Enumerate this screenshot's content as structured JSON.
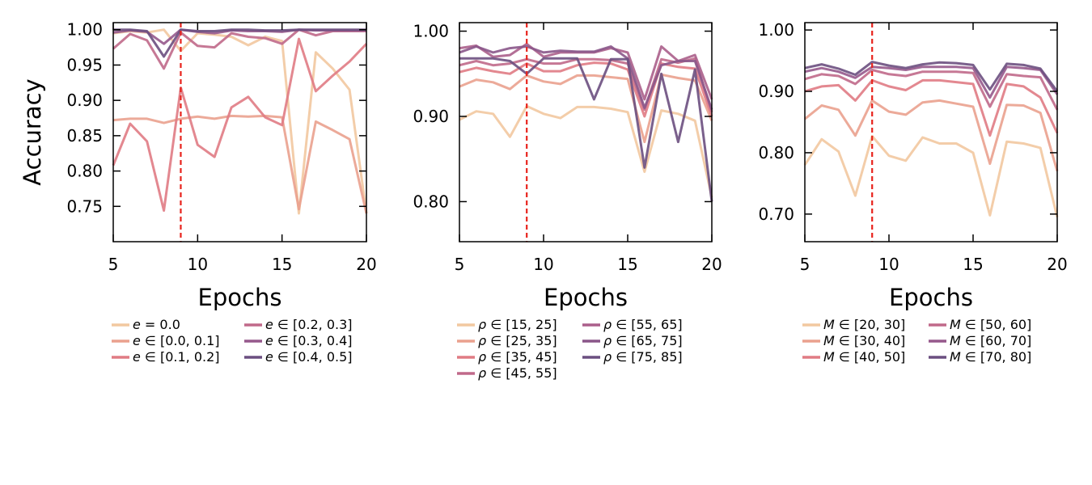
{
  "chart_data": [
    {
      "type": "line",
      "panel": "left",
      "xlabel": "Epochs",
      "ylabel": "Accuracy",
      "xlim": [
        5,
        20
      ],
      "ylim": [
        0.7,
        1.01
      ],
      "xticks": [
        5,
        10,
        15,
        20
      ],
      "xtick_labels": [
        "5",
        "10",
        "15",
        "20"
      ],
      "yticks": [
        0.75,
        0.8,
        0.85,
        0.9,
        0.95,
        1.0
      ],
      "ytick_labels": [
        "0.75",
        "0.80",
        "0.85",
        "0.90",
        "0.95",
        "1.00"
      ],
      "vline_x": 9,
      "x": [
        5,
        6,
        7,
        8,
        9,
        10,
        11,
        12,
        13,
        14,
        15,
        16,
        17,
        18,
        19,
        20
      ],
      "series": [
        {
          "name": "e = 0.0",
          "legend_var": "e",
          "legend_text": " = 0.0",
          "color": "#f2c8a0",
          "values": [
            0.995,
            0.998,
            0.996,
            1.0,
            0.97,
            0.995,
            0.993,
            0.99,
            0.978,
            0.99,
            0.984,
            0.74,
            0.968,
            0.945,
            0.915,
            0.74
          ]
        },
        {
          "name": "e ∈ [0.0, 0.1]",
          "legend_var": "e",
          "legend_text": " ∈ [0.0, 0.1]",
          "color": "#eaa18e",
          "values": [
            0.872,
            0.874,
            0.874,
            0.868,
            0.874,
            0.877,
            0.874,
            0.878,
            0.877,
            0.878,
            0.876,
            0.746,
            0.87,
            0.858,
            0.845,
            0.74
          ]
        },
        {
          "name": "e ∈ [0.1, 0.2]",
          "legend_var": "e",
          "legend_text": " ∈ [0.1, 0.2]",
          "color": "#e07b84",
          "values": [
            0.808,
            0.867,
            0.842,
            0.744,
            0.918,
            0.837,
            0.82,
            0.89,
            0.905,
            0.876,
            0.865,
            0.987,
            0.913,
            0.935,
            0.955,
            0.98
          ]
        },
        {
          "name": "e ∈ [0.2, 0.3]",
          "legend_var": "e",
          "legend_text": " ∈ [0.2, 0.3]",
          "color": "#c0698a",
          "values": [
            0.973,
            0.994,
            0.985,
            0.945,
            0.996,
            0.977,
            0.975,
            0.995,
            0.99,
            0.988,
            0.98,
            1.0,
            0.992,
            0.998,
            0.998,
            0.998
          ]
        },
        {
          "name": "e ∈ [0.3, 0.4]",
          "legend_var": "e",
          "legend_text": " ∈ [0.3, 0.4]",
          "color": "#96598c",
          "values": [
            0.996,
            0.999,
            0.997,
            0.98,
            1.0,
            0.997,
            0.995,
            0.999,
            0.998,
            0.998,
            0.997,
            1.0,
            0.999,
            0.999,
            0.999,
            0.999
          ]
        },
        {
          "name": "e ∈ [0.4, 0.5]",
          "legend_var": "e",
          "legend_text": " ∈ [0.4, 0.5]",
          "color": "#6b4f80",
          "values": [
            1.0,
            1.0,
            0.998,
            0.962,
            1.0,
            0.998,
            0.998,
            1.0,
            1.0,
            0.999,
            0.999,
            1.0,
            1.0,
            1.0,
            1.0,
            1.0
          ]
        }
      ]
    },
    {
      "type": "line",
      "panel": "middle",
      "xlabel": "Epochs",
      "ylabel": "",
      "xlim": [
        5,
        20
      ],
      "ylim": [
        0.753,
        1.01
      ],
      "xticks": [
        5,
        10,
        15,
        20
      ],
      "xtick_labels": [
        "5",
        "10",
        "15",
        "20"
      ],
      "yticks": [
        0.8,
        0.9,
        1.0
      ],
      "ytick_labels": [
        "0.80",
        "0.90",
        "1.00"
      ],
      "vline_x": 9,
      "x": [
        5,
        6,
        7,
        8,
        9,
        10,
        11,
        12,
        13,
        14,
        15,
        16,
        17,
        18,
        19,
        20
      ],
      "series": [
        {
          "name": "ρ ∈ [15, 25]",
          "legend_var": "ρ",
          "legend_text": " ∈ [15, 25]",
          "color": "#f2c8a0",
          "values": [
            0.896,
            0.906,
            0.903,
            0.876,
            0.912,
            0.903,
            0.898,
            0.911,
            0.911,
            0.909,
            0.905,
            0.835,
            0.907,
            0.903,
            0.895,
            0.805
          ]
        },
        {
          "name": "ρ ∈ [25, 35]",
          "legend_var": "ρ",
          "legend_text": " ∈ [25, 35]",
          "color": "#eaa18e",
          "values": [
            0.935,
            0.943,
            0.94,
            0.932,
            0.948,
            0.941,
            0.938,
            0.948,
            0.948,
            0.946,
            0.944,
            0.87,
            0.949,
            0.945,
            0.942,
            0.895
          ]
        },
        {
          "name": "ρ ∈ [35, 45]",
          "legend_var": "ρ",
          "legend_text": " ∈ [35, 45]",
          "color": "#e07b84",
          "values": [
            0.952,
            0.957,
            0.953,
            0.95,
            0.962,
            0.953,
            0.953,
            0.96,
            0.963,
            0.962,
            0.955,
            0.9,
            0.962,
            0.958,
            0.956,
            0.9
          ]
        },
        {
          "name": "ρ ∈ [45, 55]",
          "legend_var": "ρ",
          "legend_text": " ∈ [45, 55]",
          "color": "#c0698a",
          "values": [
            0.96,
            0.965,
            0.96,
            0.962,
            0.967,
            0.962,
            0.962,
            0.967,
            0.967,
            0.966,
            0.962,
            0.908,
            0.967,
            0.963,
            0.968,
            0.905
          ]
        },
        {
          "name": "ρ ∈ [55, 65]",
          "legend_var": "ρ",
          "legend_text": " ∈ [55, 65]",
          "color": "#ab5f8b",
          "values": [
            0.98,
            0.983,
            0.97,
            0.972,
            0.985,
            0.97,
            0.975,
            0.975,
            0.975,
            0.98,
            0.975,
            0.92,
            0.982,
            0.965,
            0.972,
            0.92
          ]
        },
        {
          "name": "ρ ∈ [65, 75]",
          "legend_var": "ρ",
          "legend_text": " ∈ [65, 75]",
          "color": "#8a5689",
          "values": [
            0.975,
            0.982,
            0.975,
            0.98,
            0.982,
            0.975,
            0.977,
            0.976,
            0.976,
            0.982,
            0.968,
            0.91,
            0.96,
            0.965,
            0.965,
            0.908
          ]
        },
        {
          "name": "ρ ∈ [75, 85]",
          "legend_var": "ρ",
          "legend_text": " ∈ [75, 85]",
          "color": "#6b4f80",
          "values": [
            0.968,
            0.968,
            0.968,
            0.965,
            0.95,
            0.968,
            0.968,
            0.968,
            0.92,
            0.967,
            0.967,
            0.84,
            0.95,
            0.87,
            0.955,
            0.8
          ]
        }
      ]
    },
    {
      "type": "line",
      "panel": "right",
      "xlabel": "Epochs",
      "ylabel": "",
      "xlim": [
        5,
        20
      ],
      "ylim": [
        0.655,
        1.012
      ],
      "xticks": [
        5,
        10,
        15,
        20
      ],
      "xtick_labels": [
        "5",
        "10",
        "15",
        "20"
      ],
      "yticks": [
        0.7,
        0.8,
        0.9,
        1.0
      ],
      "ytick_labels": [
        "0.70",
        "0.80",
        "0.90",
        "1.00"
      ],
      "vline_x": 9,
      "x": [
        5,
        6,
        7,
        8,
        9,
        10,
        11,
        12,
        13,
        14,
        15,
        16,
        17,
        18,
        19,
        20
      ],
      "series": [
        {
          "name": "M ∈ [20, 30]",
          "legend_var": "M",
          "legend_text": " ∈ [20, 30]",
          "color": "#f2c8a0",
          "values": [
            0.78,
            0.822,
            0.802,
            0.73,
            0.827,
            0.795,
            0.787,
            0.825,
            0.815,
            0.815,
            0.8,
            0.698,
            0.818,
            0.815,
            0.808,
            0.695
          ]
        },
        {
          "name": "M ∈ [30, 40]",
          "legend_var": "M",
          "legend_text": " ∈ [30, 40]",
          "color": "#eaa18e",
          "values": [
            0.855,
            0.877,
            0.87,
            0.828,
            0.885,
            0.867,
            0.862,
            0.882,
            0.885,
            0.88,
            0.875,
            0.782,
            0.878,
            0.877,
            0.865,
            0.77
          ]
        },
        {
          "name": "M ∈ [40, 50]",
          "legend_var": "M",
          "legend_text": " ∈ [40, 50]",
          "color": "#e07b84",
          "values": [
            0.9,
            0.908,
            0.91,
            0.885,
            0.918,
            0.908,
            0.902,
            0.918,
            0.918,
            0.915,
            0.912,
            0.828,
            0.912,
            0.908,
            0.89,
            0.832
          ]
        },
        {
          "name": "M ∈ [50, 60]",
          "legend_var": "M",
          "legend_text": " ∈ [50, 60]",
          "color": "#c0698a",
          "values": [
            0.92,
            0.928,
            0.925,
            0.912,
            0.935,
            0.928,
            0.925,
            0.932,
            0.932,
            0.932,
            0.93,
            0.875,
            0.928,
            0.925,
            0.923,
            0.87
          ]
        },
        {
          "name": "M ∈ [60, 70]",
          "legend_var": "M",
          "legend_text": " ∈ [60, 70]",
          "color": "#96598c",
          "values": [
            0.932,
            0.938,
            0.932,
            0.922,
            0.94,
            0.938,
            0.935,
            0.94,
            0.94,
            0.94,
            0.938,
            0.89,
            0.94,
            0.938,
            0.935,
            0.895
          ]
        },
        {
          "name": "M ∈ [70, 80]",
          "legend_var": "M",
          "legend_text": " ∈ [70, 80]",
          "color": "#6b4f80",
          "values": [
            0.938,
            0.944,
            0.937,
            0.927,
            0.948,
            0.942,
            0.938,
            0.944,
            0.947,
            0.946,
            0.943,
            0.903,
            0.945,
            0.943,
            0.937,
            0.9
          ]
        }
      ]
    }
  ]
}
